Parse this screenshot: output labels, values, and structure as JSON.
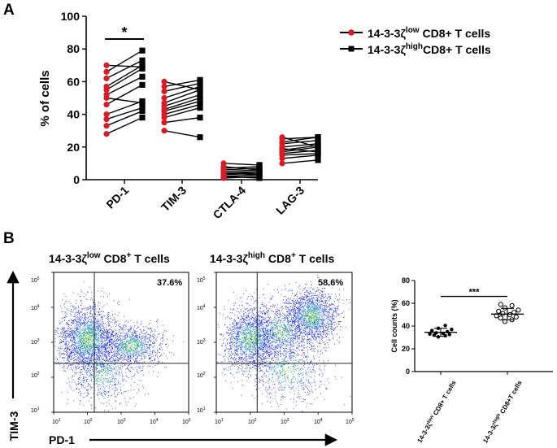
{
  "panel_a": {
    "letter": "A",
    "legend": [
      {
        "prefix": "14-3-3ζ",
        "sup": "low",
        "suffix": " CD8+ T cells"
      },
      {
        "prefix": "14-3-3ζ",
        "sup": "high",
        "suffix": "CD8+ T cells"
      }
    ]
  },
  "panel_b": {
    "letter": "B",
    "plot_titles": [
      {
        "prefix": "14-3-3ζ",
        "sup1": "low",
        "mid": " CD8",
        "sup2": "+",
        "suffix": " T cells"
      },
      {
        "prefix": "14-3-3ζ",
        "sup1": "high",
        "mid": " CD8",
        "sup2": "+",
        "suffix": " T cells"
      }
    ],
    "y_axis_label": "TIM-3",
    "x_axis_label": "PD-1",
    "quadrant_percents": [
      "37.6%",
      "58.6%"
    ],
    "y_ticks": [
      {
        "base": "10",
        "exp": "5"
      },
      {
        "base": "10",
        "exp": "4"
      },
      {
        "base": "10",
        "exp": "3"
      },
      {
        "base": "10",
        "exp": "2"
      },
      {
        "base": "10",
        "exp": "1"
      }
    ],
    "x_ticks": [
      {
        "base": "10",
        "exp": "1"
      },
      {
        "base": "10",
        "exp": "2"
      },
      {
        "base": "10",
        "exp": "3"
      },
      {
        "base": "10",
        "exp": "4"
      },
      {
        "base": "10",
        "exp": "5"
      }
    ]
  },
  "chart_data": [
    {
      "type": "line",
      "subtype": "paired-before-after",
      "title": "",
      "ylabel": "% of cells",
      "xlabel": "",
      "ylim": [
        0,
        100
      ],
      "yticks": [
        0,
        20,
        40,
        60,
        80,
        100
      ],
      "categories": [
        "PD-1",
        "TIM-3",
        "CTLA-4",
        "LAG-3"
      ],
      "series": [
        {
          "name": "14-3-3ζlow CD8+ T cells",
          "marker": "circle",
          "color": "#d11f2a"
        },
        {
          "name": "14-3-3ζhighCD8+ T cells",
          "marker": "square",
          "color": "#000000"
        }
      ],
      "pairs": [
        [
          [
            28,
            38
          ],
          [
            33,
            42
          ],
          [
            37,
            44
          ],
          [
            40,
            48
          ],
          [
            46,
            58
          ],
          [
            52,
            63
          ],
          [
            55,
            68
          ],
          [
            57,
            70
          ],
          [
            62,
            73
          ],
          [
            66,
            79
          ],
          [
            70,
            69
          ],
          [
            50,
            47
          ]
        ],
        [
          [
            30,
            26
          ],
          [
            35,
            38
          ],
          [
            38,
            44
          ],
          [
            40,
            46
          ],
          [
            43,
            50
          ],
          [
            45,
            52
          ],
          [
            47,
            55
          ],
          [
            50,
            57
          ],
          [
            54,
            59
          ],
          [
            57,
            61
          ],
          [
            60,
            55
          ],
          [
            42,
            48
          ]
        ],
        [
          [
            1,
            2
          ],
          [
            2,
            3
          ],
          [
            3,
            4
          ],
          [
            3,
            5
          ],
          [
            4,
            5
          ],
          [
            5,
            6
          ],
          [
            6,
            7
          ],
          [
            7,
            8
          ],
          [
            8,
            6
          ],
          [
            10,
            9
          ],
          [
            2,
            1
          ],
          [
            4,
            3
          ]
        ],
        [
          [
            10,
            12
          ],
          [
            13,
            15
          ],
          [
            15,
            16
          ],
          [
            16,
            18
          ],
          [
            17,
            20
          ],
          [
            18,
            21
          ],
          [
            20,
            22
          ],
          [
            22,
            24
          ],
          [
            23,
            26
          ],
          [
            25,
            26
          ],
          [
            26,
            20
          ],
          [
            19,
            17
          ]
        ]
      ],
      "significance": [
        {
          "between": "PD-1",
          "label": "*"
        }
      ]
    },
    {
      "type": "scatter",
      "subtype": "flow-cytometry-dot-plot",
      "title": "14-3-3ζlow CD8+ T cells",
      "xlabel": "PD-1",
      "ylabel": "TIM-3",
      "xscale": "log",
      "yscale": "log",
      "xlim": [
        10,
        100000
      ],
      "ylim": [
        10,
        100000
      ],
      "quadrant_gate": {
        "x": 160,
        "y": 250
      },
      "upper_right_percent": 37.6,
      "clusters": [
        {
          "cx": 2.0,
          "cy": 3.1,
          "sx": 0.42,
          "sy": 0.5,
          "n": 2200
        },
        {
          "cx": 3.3,
          "cy": 2.9,
          "sx": 0.45,
          "sy": 0.3,
          "n": 1100
        },
        {
          "cx": 2.4,
          "cy": 2.1,
          "sx": 0.5,
          "sy": 0.45,
          "n": 700
        }
      ]
    },
    {
      "type": "scatter",
      "subtype": "flow-cytometry-dot-plot",
      "title": "14-3-3ζhigh CD8+ T cells",
      "xlabel": "PD-1",
      "ylabel": "TIM-3",
      "xscale": "log",
      "yscale": "log",
      "xlim": [
        10,
        100000
      ],
      "ylim": [
        10,
        100000
      ],
      "quadrant_gate": {
        "x": 160,
        "y": 250
      },
      "upper_right_percent": 58.6,
      "clusters": [
        {
          "cx": 2.0,
          "cy": 3.1,
          "sx": 0.42,
          "sy": 0.45,
          "n": 1700
        },
        {
          "cx": 3.8,
          "cy": 3.75,
          "sx": 0.38,
          "sy": 0.38,
          "n": 1600
        },
        {
          "cx": 2.9,
          "cy": 3.3,
          "sx": 0.45,
          "sy": 0.45,
          "n": 900
        },
        {
          "cx": 3.1,
          "cy": 2.2,
          "sx": 0.6,
          "sy": 0.5,
          "n": 700
        }
      ]
    },
    {
      "type": "scatter",
      "subtype": "dot-plot-with-mean-sd",
      "title": "",
      "ylabel": "Cell counts (%)",
      "xlabel": "",
      "ylim": [
        0,
        80
      ],
      "yticks": [
        0,
        20,
        40,
        60,
        80
      ],
      "categories": [
        {
          "prefix": "14-3-3ζ",
          "sup": "low",
          "suffix": " CD8+ T cells"
        },
        {
          "prefix": "14-3-3ζ",
          "sup": "high",
          "suffix": " CD8+T cells"
        }
      ],
      "groups": [
        {
          "name": "14-3-3ζlow CD8+ T cells",
          "marker": "filled-circle",
          "mean": 34.5,
          "sd": 3.5,
          "values": [
            30.5,
            31.5,
            32,
            32.5,
            33,
            33.5,
            34,
            35,
            36,
            37,
            38,
            40.5
          ]
        },
        {
          "name": "14-3-3ζhigh CD8+T cells",
          "marker": "open-circle",
          "mean": 50.5,
          "sd": 5,
          "values": [
            44,
            45.5,
            47,
            48,
            49,
            50,
            51,
            52,
            53,
            54,
            56,
            58,
            59
          ]
        }
      ],
      "significance": [
        {
          "between": [
            "14-3-3ζlow CD8+ T cells",
            "14-3-3ζhigh CD8+T cells"
          ],
          "label": "***"
        }
      ]
    }
  ]
}
